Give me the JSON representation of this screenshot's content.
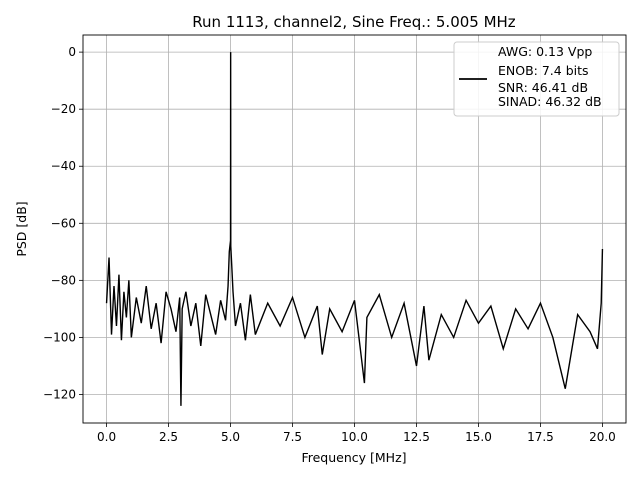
{
  "chart_data": {
    "type": "line",
    "title": "Run 1113, channel2, Sine Freq.: 5.005 MHz",
    "xlabel": "Frequency [MHz]",
    "ylabel": "PSD [dB]",
    "xlim": [
      -0.95,
      20.95
    ],
    "ylim": [
      -130,
      6
    ],
    "xticks": [
      0.0,
      2.5,
      5.0,
      7.5,
      10.0,
      12.5,
      15.0,
      17.5,
      20.0
    ],
    "xtick_labels": [
      "0.0",
      "2.5",
      "5.0",
      "7.5",
      "10.0",
      "12.5",
      "15.0",
      "17.5",
      "20.0"
    ],
    "yticks": [
      0,
      -20,
      -40,
      -60,
      -80,
      -100,
      -120
    ],
    "ytick_labels": [
      "0",
      "−20",
      "−40",
      "−60",
      "−80",
      "−100",
      "−120"
    ],
    "grid": true,
    "legend_position": "top-right",
    "series": [
      {
        "color": "#000000",
        "legend_lines": [
          "AWG: 0.13 Vpp",
          "ENOB: 7.4 bits",
          "SNR: 46.41 dB",
          "SINAD: 46.32 dB"
        ],
        "x": [
          0.0,
          0.1,
          0.2,
          0.3,
          0.4,
          0.5,
          0.6,
          0.7,
          0.8,
          0.9,
          1.0,
          1.2,
          1.4,
          1.6,
          1.8,
          2.0,
          2.2,
          2.4,
          2.6,
          2.8,
          2.95,
          3.0,
          3.05,
          3.2,
          3.4,
          3.6,
          3.8,
          4.0,
          4.2,
          4.4,
          4.6,
          4.8,
          4.9,
          4.95,
          5.0,
          5.005,
          5.01,
          5.05,
          5.1,
          5.2,
          5.4,
          5.6,
          5.8,
          6.0,
          6.5,
          7.0,
          7.5,
          8.0,
          8.5,
          8.7,
          9.0,
          9.5,
          10.0,
          10.4,
          10.5,
          11.0,
          11.5,
          12.0,
          12.5,
          12.8,
          13.0,
          13.5,
          14.0,
          14.5,
          15.0,
          15.5,
          16.0,
          16.5,
          17.0,
          17.5,
          18.0,
          18.5,
          19.0,
          19.5,
          19.8,
          19.95,
          20.0
        ],
        "y": [
          -88,
          -72,
          -99,
          -82,
          -96,
          -78,
          -101,
          -84,
          -93,
          -80,
          -100,
          -86,
          -95,
          -82,
          -97,
          -88,
          -102,
          -84,
          -90,
          -98,
          -86,
          -124,
          -90,
          -84,
          -96,
          -88,
          -103,
          -85,
          -92,
          -99,
          -87,
          -94,
          -82,
          -70,
          -66,
          0,
          -68,
          -75,
          -84,
          -96,
          -88,
          -101,
          -85,
          -99,
          -88,
          -96,
          -86,
          -100,
          -89,
          -106,
          -90,
          -98,
          -87,
          -116,
          -93,
          -85,
          -100,
          -88,
          -110,
          -89,
          -108,
          -92,
          -100,
          -87,
          -95,
          -89,
          -104,
          -90,
          -97,
          -88,
          -100,
          -118,
          -92,
          -98,
          -104,
          -88,
          -69
        ]
      }
    ]
  }
}
